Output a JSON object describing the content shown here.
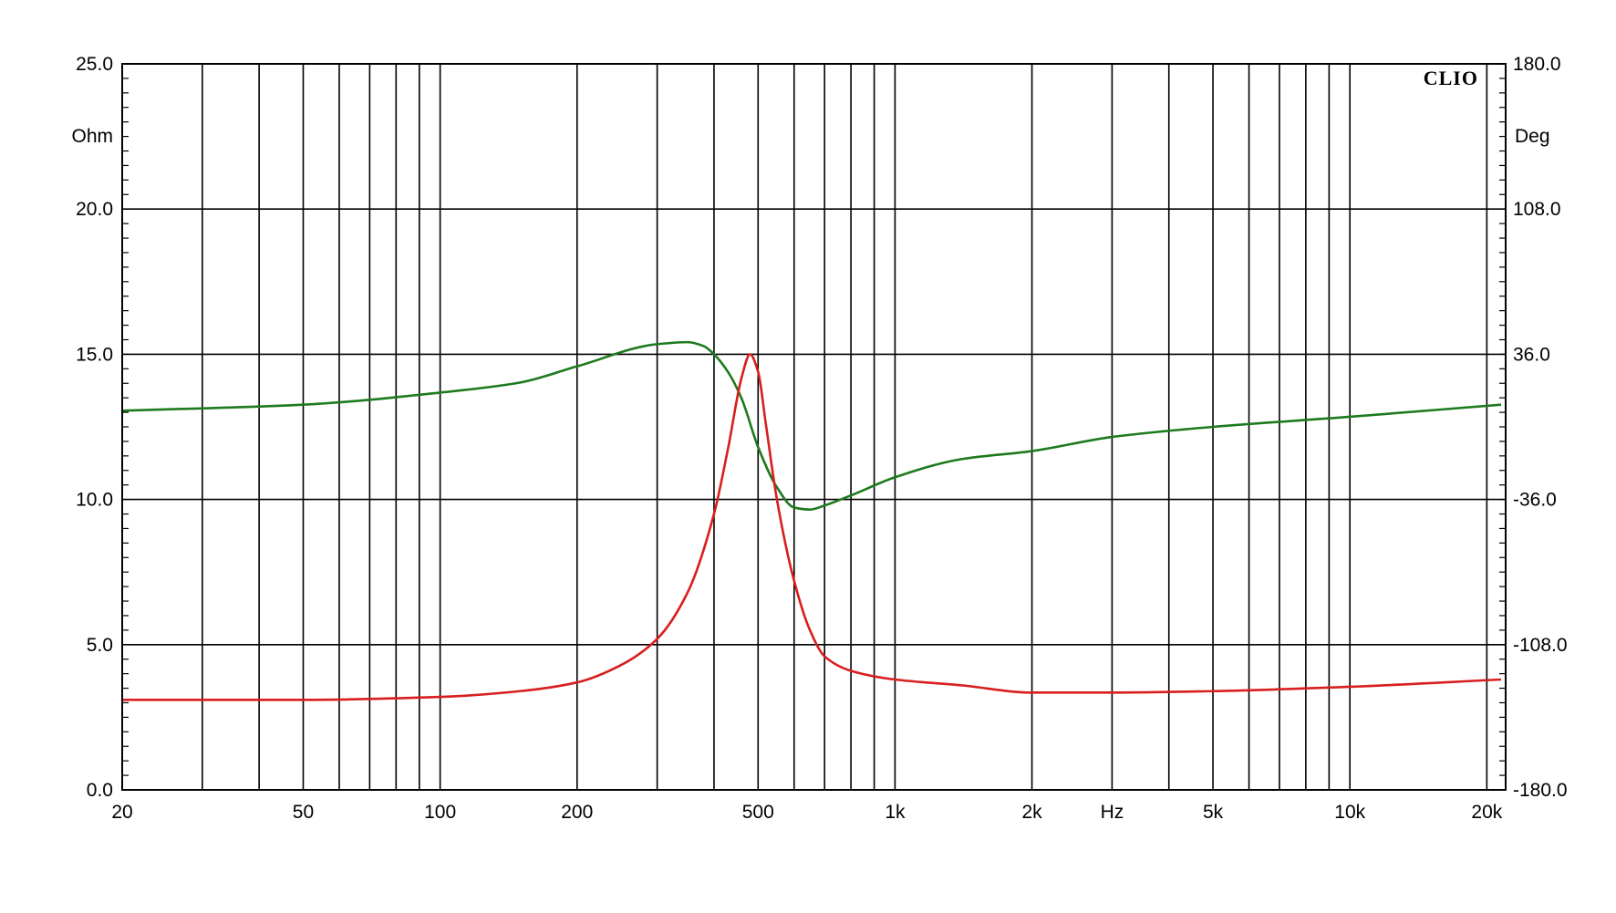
{
  "chart_data": {
    "type": "line",
    "brand": "CLIO",
    "x_unit_label": "Hz",
    "x_scale": "log",
    "x_range": [
      20,
      22000
    ],
    "x_ticks": [
      {
        "value": 20,
        "label": "20"
      },
      {
        "value": 50,
        "label": "50"
      },
      {
        "value": 100,
        "label": "100"
      },
      {
        "value": 200,
        "label": "200"
      },
      {
        "value": 500,
        "label": "500"
      },
      {
        "value": 1000,
        "label": "1k"
      },
      {
        "value": 2000,
        "label": "2k"
      },
      {
        "value": 5000,
        "label": "5k"
      },
      {
        "value": 10000,
        "label": "10k"
      },
      {
        "value": 20000,
        "label": "20k"
      }
    ],
    "hz_label_value": 3000,
    "y_left": {
      "unit": "Ohm",
      "range": [
        0,
        25
      ],
      "ticks": [
        "0.0",
        "5.0",
        "10.0",
        "15.0",
        "20.0",
        "25.0"
      ],
      "tick_values": [
        0,
        5,
        10,
        15,
        20,
        25
      ]
    },
    "y_right": {
      "unit": "Deg",
      "range": [
        -180,
        180
      ],
      "ticks": [
        "-180.0",
        "-108.0",
        "-36.0",
        "36.0",
        "108.0",
        "180.0"
      ],
      "tick_values": [
        -180,
        -108,
        -36,
        36,
        108,
        180
      ]
    },
    "grid": true,
    "series": [
      {
        "color": "#d81e1e",
        "axis": "left",
        "x": [
          20,
          50,
          100,
          150,
          200,
          250,
          300,
          350,
          400,
          430,
          460,
          480,
          500,
          520,
          550,
          600,
          650,
          700,
          800,
          1000,
          1400,
          2000,
          3000,
          5000,
          10000,
          21500
        ],
        "y": [
          3.1,
          3.1,
          3.2,
          3.4,
          3.7,
          4.3,
          5.2,
          6.8,
          9.5,
          11.8,
          14.2,
          15.0,
          14.4,
          12.6,
          10.0,
          7.2,
          5.5,
          4.6,
          4.1,
          3.8,
          3.6,
          3.35,
          3.35,
          3.4,
          3.55,
          3.8
        ]
      },
      {
        "color": "#1e7a1e",
        "axis": "right",
        "x": [
          20,
          50,
          100,
          150,
          200,
          300,
          350,
          380,
          400,
          430,
          460,
          500,
          550,
          600,
          650,
          700,
          800,
          1000,
          1400,
          2000,
          3000,
          5000,
          10000,
          21500
        ],
        "y": [
          8,
          11,
          17,
          22,
          30,
          41,
          42,
          40,
          36,
          27,
          14,
          -10,
          -30,
          -40,
          -41,
          -39,
          -34,
          -25,
          -16,
          -12,
          -5,
          0,
          5,
          11
        ]
      }
    ]
  }
}
